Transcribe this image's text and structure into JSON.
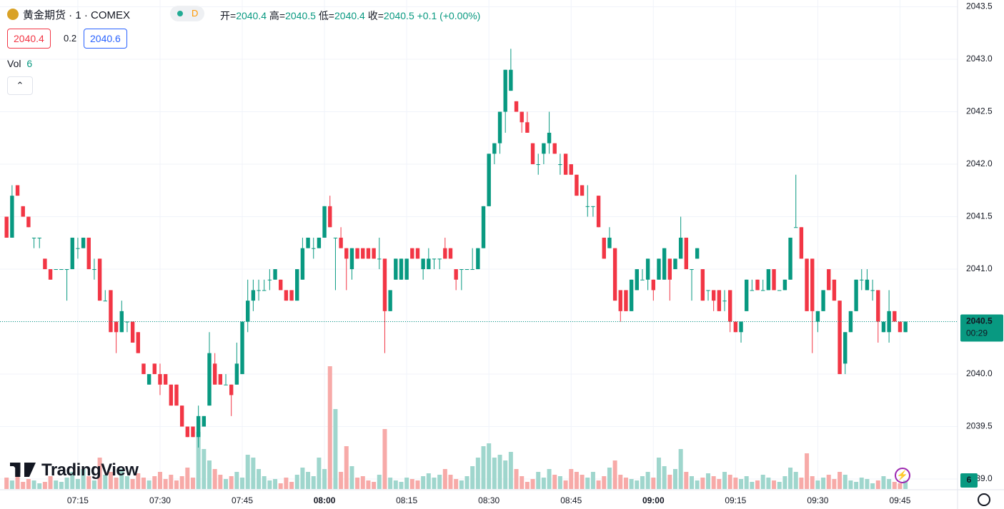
{
  "chart_data": {
    "type": "candlestick",
    "title": "黄金期货 · 1 · COMEX",
    "interval_badge": "D",
    "ohlc_labels": [
      "开=",
      "高=",
      "低=",
      "收="
    ],
    "change": "+0.1 (+0.00%)",
    "bid": 2040.4,
    "spread": 0.2,
    "ask": 2040.6,
    "volume_label": "Vol",
    "countdown": "00:29",
    "watermark": "TradingView",
    "up_color": "#089981",
    "down_color": "#f23645",
    "up_volume_color": "#9fd6cd",
    "down_volume_color": "#f7aaa8",
    "ylim": [
      2038.905,
      2043.565
    ],
    "yticks": [
      {
        "value": 2039.0,
        "label": "2039.0"
      },
      {
        "value": 2039.5,
        "label": "2039.5"
      },
      {
        "value": 2040.0,
        "label": "2040.0"
      },
      {
        "value": 2040.5,
        "label": "2040.5"
      },
      {
        "value": 2041.0,
        "label": "2041.0"
      },
      {
        "value": 2041.5,
        "label": "2041.5"
      },
      {
        "value": 2042.0,
        "label": "2042.0"
      },
      {
        "value": 2042.5,
        "label": "2042.5"
      },
      {
        "value": 2043.0,
        "label": "2043.0"
      },
      {
        "value": 2043.5,
        "label": "2043.5"
      }
    ],
    "xlim": [
      -1.2,
      173.5
    ],
    "xticks": [
      {
        "value": 13,
        "label": "07:15"
      },
      {
        "value": 28,
        "label": "07:30"
      },
      {
        "value": 43,
        "label": "07:45"
      },
      {
        "value": 58,
        "label": "08:00"
      },
      {
        "value": 73,
        "label": "08:15"
      },
      {
        "value": 88,
        "label": "08:30"
      },
      {
        "value": 103,
        "label": "08:45"
      },
      {
        "value": 118,
        "label": "09:00"
      },
      {
        "value": 133,
        "label": "09:15"
      },
      {
        "value": 148,
        "label": "09:30"
      },
      {
        "value": 163,
        "label": "09:45"
      }
    ],
    "candles": [
      [
        2041.5,
        2041.5,
        2041.3,
        2041.3
      ],
      [
        2041.3,
        2041.8,
        2041.3,
        2041.7
      ],
      [
        2041.8,
        2041.8,
        2041.7,
        2041.7
      ],
      [
        2041.6,
        2041.6,
        2041.5,
        2041.5
      ],
      [
        2041.5,
        2041.5,
        2041.4,
        2041.4
      ],
      [
        2041.3,
        2041.3,
        2041.2,
        2041.3
      ],
      [
        2041.3,
        2041.3,
        2041.2,
        2041.3
      ],
      [
        2041.1,
        2041.1,
        2041.0,
        2041.0
      ],
      [
        2041.0,
        2041.0,
        2040.9,
        2040.9
      ],
      [
        2041.0,
        2041.0,
        2041.0,
        2041.0
      ],
      [
        2041.0,
        2041.0,
        2041.0,
        2041.0
      ],
      [
        2041.0,
        2041.0,
        2040.7,
        2041.0
      ],
      [
        2041.0,
        2041.3,
        2041.0,
        2041.3
      ],
      [
        2041.2,
        2041.3,
        2041.1,
        2041.2
      ],
      [
        2041.2,
        2041.3,
        2041.2,
        2041.3
      ],
      [
        2041.3,
        2041.3,
        2041.0,
        2041.0
      ],
      [
        2041.0,
        2041.1,
        2040.9,
        2041.0
      ],
      [
        2041.1,
        2041.1,
        2040.7,
        2040.7
      ],
      [
        2040.7,
        2040.8,
        2040.7,
        2040.7
      ],
      [
        2040.8,
        2040.8,
        2040.4,
        2040.4
      ],
      [
        2040.5,
        2040.5,
        2040.2,
        2040.4
      ],
      [
        2040.4,
        2040.7,
        2040.4,
        2040.6
      ],
      [
        2040.5,
        2040.5,
        2040.4,
        2040.5
      ],
      [
        2040.5,
        2040.5,
        2040.3,
        2040.3
      ],
      [
        2040.4,
        2040.4,
        2040.2,
        2040.2
      ],
      [
        2040.1,
        2040.1,
        2040.0,
        2040.0
      ],
      [
        2039.9,
        2040.0,
        2039.9,
        2040.0
      ],
      [
        2040.1,
        2040.1,
        2040.0,
        2040.0
      ],
      [
        2040.0,
        2040.1,
        2039.8,
        2039.9
      ],
      [
        2040.0,
        2040.0,
        2039.9,
        2039.9
      ],
      [
        2039.9,
        2039.9,
        2039.7,
        2039.7
      ],
      [
        2039.9,
        2039.9,
        2039.7,
        2039.7
      ],
      [
        2039.7,
        2039.7,
        2039.5,
        2039.5
      ],
      [
        2039.5,
        2039.5,
        2039.4,
        2039.4
      ],
      [
        2039.5,
        2039.5,
        2039.4,
        2039.4
      ],
      [
        2039.4,
        2039.7,
        2039.3,
        2039.6
      ],
      [
        2039.5,
        2039.6,
        2039.5,
        2039.6
      ],
      [
        2039.7,
        2040.4,
        2039.7,
        2040.2
      ],
      [
        2040.1,
        2040.2,
        2039.9,
        2039.9
      ],
      [
        2040.0,
        2040.0,
        2039.9,
        2039.9
      ],
      [
        2039.9,
        2040.0,
        2039.9,
        2039.9
      ],
      [
        2039.9,
        2039.9,
        2039.6,
        2039.8
      ],
      [
        2039.9,
        2040.3,
        2039.9,
        2040.1
      ],
      [
        2040.0,
        2040.5,
        2040.0,
        2040.5
      ],
      [
        2040.5,
        2040.9,
        2040.4,
        2040.7
      ],
      [
        2040.7,
        2040.9,
        2040.6,
        2040.8
      ],
      [
        2040.8,
        2040.9,
        2040.7,
        2040.8
      ],
      [
        2040.8,
        2040.9,
        2040.8,
        2040.8
      ],
      [
        2040.9,
        2041.0,
        2040.8,
        2040.9
      ],
      [
        2040.9,
        2041.0,
        2040.9,
        2041.0
      ],
      [
        2040.9,
        2040.9,
        2040.8,
        2040.8
      ],
      [
        2040.8,
        2040.8,
        2040.7,
        2040.7
      ],
      [
        2040.8,
        2040.8,
        2040.7,
        2040.7
      ],
      [
        2040.7,
        2041.0,
        2040.7,
        2041.0
      ],
      [
        2040.9,
        2041.3,
        2040.9,
        2041.2
      ],
      [
        2041.2,
        2041.3,
        2041.2,
        2041.3
      ],
      [
        2041.2,
        2041.3,
        2041.1,
        2041.2
      ],
      [
        2041.2,
        2041.3,
        2041.2,
        2041.3
      ],
      [
        2041.3,
        2041.6,
        2041.3,
        2041.6
      ],
      [
        2041.6,
        2041.7,
        2041.4,
        2041.4
      ],
      [
        2041.3,
        2041.3,
        2040.8,
        2041.3
      ],
      [
        2041.3,
        2041.4,
        2041.2,
        2041.2
      ],
      [
        2041.2,
        2041.2,
        2040.8,
        2041.1
      ],
      [
        2041.0,
        2041.2,
        2040.9,
        2041.2
      ],
      [
        2041.2,
        2041.2,
        2041.1,
        2041.1
      ],
      [
        2041.2,
        2041.2,
        2041.1,
        2041.1
      ],
      [
        2041.2,
        2041.2,
        2041.1,
        2041.1
      ],
      [
        2041.2,
        2041.2,
        2041.1,
        2041.1
      ],
      [
        2041.1,
        2041.3,
        2041.0,
        2041.1
      ],
      [
        2041.1,
        2041.1,
        2040.2,
        2040.6
      ],
      [
        2040.6,
        2040.8,
        2040.6,
        2040.8
      ],
      [
        2040.9,
        2041.1,
        2040.9,
        2041.1
      ],
      [
        2040.9,
        2041.1,
        2040.9,
        2041.1
      ],
      [
        2040.9,
        2041.1,
        2040.9,
        2041.1
      ],
      [
        2041.2,
        2041.2,
        2041.1,
        2041.1
      ],
      [
        2041.2,
        2041.2,
        2041.1,
        2041.1
      ],
      [
        2041.0,
        2041.1,
        2040.9,
        2041.1
      ],
      [
        2041.0,
        2041.2,
        2041.0,
        2041.1
      ],
      [
        2041.1,
        2041.1,
        2041.0,
        2041.1
      ],
      [
        2041.1,
        2041.1,
        2041.0,
        2041.1
      ],
      [
        2041.2,
        2041.3,
        2041.1,
        2041.1
      ],
      [
        2041.2,
        2041.2,
        2041.1,
        2041.1
      ],
      [
        2041.0,
        2041.0,
        2040.8,
        2040.9
      ],
      [
        2041.0,
        2041.0,
        2040.8,
        2041.0
      ],
      [
        2041.0,
        2041.0,
        2041.0,
        2041.0
      ],
      [
        2041.0,
        2041.2,
        2041.0,
        2041.0
      ],
      [
        2041.0,
        2041.2,
        2041.0,
        2041.2
      ],
      [
        2041.2,
        2041.6,
        2041.2,
        2041.6
      ],
      [
        2041.6,
        2042.1,
        2041.6,
        2042.1
      ],
      [
        2042.1,
        2042.2,
        2042.0,
        2042.2
      ],
      [
        2042.2,
        2042.5,
        2042.1,
        2042.5
      ],
      [
        2042.5,
        2042.9,
        2042.3,
        2042.9
      ],
      [
        2042.7,
        2043.1,
        2042.7,
        2042.9
      ],
      [
        2042.6,
        2042.6,
        2042.5,
        2042.5
      ],
      [
        2042.5,
        2042.5,
        2042.3,
        2042.4
      ],
      [
        2042.4,
        2042.5,
        2042.3,
        2042.3
      ],
      [
        2042.2,
        2042.2,
        2042.0,
        2042.0
      ],
      [
        2042.0,
        2042.1,
        2041.9,
        2042.0
      ],
      [
        2042.1,
        2042.2,
        2042.0,
        2042.2
      ],
      [
        2042.2,
        2042.5,
        2042.1,
        2042.3
      ],
      [
        2042.2,
        2042.2,
        2042.1,
        2042.1
      ],
      [
        2042.0,
        2042.1,
        2041.9,
        2042.0
      ],
      [
        2042.1,
        2042.1,
        2041.9,
        2041.9
      ],
      [
        2042.0,
        2042.0,
        2041.9,
        2041.9
      ],
      [
        2041.9,
        2041.9,
        2041.7,
        2041.7
      ],
      [
        2041.8,
        2041.8,
        2041.7,
        2041.7
      ],
      [
        2041.6,
        2041.8,
        2041.5,
        2041.6
      ],
      [
        2041.6,
        2041.6,
        2041.5,
        2041.6
      ],
      [
        2041.7,
        2041.7,
        2041.4,
        2041.4
      ],
      [
        2041.3,
        2041.3,
        2041.1,
        2041.1
      ],
      [
        2041.2,
        2041.4,
        2041.2,
        2041.3
      ],
      [
        2041.2,
        2041.2,
        2040.7,
        2040.7
      ],
      [
        2040.8,
        2040.8,
        2040.5,
        2040.6
      ],
      [
        2040.8,
        2040.8,
        2040.6,
        2040.6
      ],
      [
        2040.6,
        2040.9,
        2040.6,
        2040.9
      ],
      [
        2040.8,
        2041.0,
        2040.8,
        2041.0
      ],
      [
        2040.9,
        2041.0,
        2040.9,
        2040.9
      ],
      [
        2040.9,
        2041.1,
        2040.8,
        2041.1
      ],
      [
        2040.9,
        2040.9,
        2040.7,
        2040.8
      ],
      [
        2040.9,
        2041.1,
        2040.9,
        2041.1
      ],
      [
        2040.9,
        2041.2,
        2040.9,
        2041.2
      ],
      [
        2041.1,
        2041.1,
        2040.7,
        2040.9
      ],
      [
        2041.0,
        2041.1,
        2041.0,
        2041.1
      ],
      [
        2041.1,
        2041.5,
        2041.1,
        2041.3
      ],
      [
        2041.3,
        2041.3,
        2041.0,
        2041.0
      ],
      [
        2041.0,
        2041.0,
        2040.7,
        2041.0
      ],
      [
        2041.1,
        2041.2,
        2041.1,
        2041.2
      ],
      [
        2041.0,
        2041.0,
        2040.7,
        2040.7
      ],
      [
        2040.8,
        2040.8,
        2040.7,
        2040.8
      ],
      [
        2040.8,
        2040.8,
        2040.6,
        2040.7
      ],
      [
        2040.8,
        2040.8,
        2040.6,
        2040.6
      ],
      [
        2040.7,
        2040.8,
        2040.6,
        2040.7
      ],
      [
        2040.8,
        2040.8,
        2040.4,
        2040.5
      ],
      [
        2040.5,
        2040.5,
        2040.4,
        2040.4
      ],
      [
        2040.4,
        2040.5,
        2040.3,
        2040.5
      ],
      [
        2040.6,
        2040.9,
        2040.6,
        2040.9
      ],
      [
        2040.8,
        2040.9,
        2040.8,
        2040.8
      ],
      [
        2040.9,
        2040.9,
        2040.8,
        2040.8
      ],
      [
        2040.8,
        2040.9,
        2040.8,
        2040.8
      ],
      [
        2040.8,
        2041.0,
        2040.8,
        2041.0
      ],
      [
        2041.0,
        2041.0,
        2040.8,
        2040.8
      ],
      [
        2040.8,
        2040.8,
        2040.8,
        2040.8
      ],
      [
        2040.8,
        2040.9,
        2040.8,
        2040.9
      ],
      [
        2040.9,
        2041.3,
        2040.9,
        2041.3
      ],
      [
        2041.4,
        2041.9,
        2041.4,
        2041.4
      ],
      [
        2041.4,
        2041.4,
        2041.1,
        2041.1
      ],
      [
        2041.1,
        2041.1,
        2040.6,
        2040.6
      ],
      [
        2041.1,
        2041.1,
        2040.2,
        2040.6
      ],
      [
        2040.5,
        2040.6,
        2040.4,
        2040.6
      ],
      [
        2040.6,
        2040.8,
        2040.6,
        2040.8
      ],
      [
        2041.0,
        2041.0,
        2040.8,
        2040.8
      ],
      [
        2040.9,
        2040.9,
        2040.7,
        2040.7
      ],
      [
        2040.7,
        2040.7,
        2040.0,
        2040.0
      ],
      [
        2040.1,
        2040.4,
        2040.0,
        2040.4
      ],
      [
        2040.4,
        2040.6,
        2040.4,
        2040.6
      ],
      [
        2040.6,
        2040.9,
        2040.6,
        2040.9
      ],
      [
        2040.9,
        2041.0,
        2040.8,
        2040.9
      ],
      [
        2040.8,
        2041.0,
        2040.8,
        2040.9
      ],
      [
        2040.8,
        2040.9,
        2040.7,
        2040.8
      ],
      [
        2040.8,
        2040.8,
        2040.3,
        2040.5
      ],
      [
        2040.4,
        2040.5,
        2040.4,
        2040.5
      ],
      [
        2040.4,
        2040.8,
        2040.3,
        2040.6
      ],
      [
        2040.6,
        2040.6,
        2040.5,
        2040.5
      ],
      [
        2040.5,
        2040.5,
        2040.4,
        2040.4
      ],
      [
        2040.4,
        2040.5,
        2040.4,
        2040.5
      ]
    ],
    "volumes": [
      8,
      6,
      10,
      5,
      7,
      6,
      4,
      5,
      9,
      6,
      5,
      8,
      12,
      7,
      14,
      9,
      6,
      22,
      10,
      12,
      8,
      14,
      9,
      7,
      11,
      8,
      6,
      9,
      12,
      7,
      10,
      6,
      9,
      15,
      8,
      40,
      28,
      20,
      14,
      10,
      7,
      9,
      12,
      8,
      24,
      22,
      14,
      9,
      6,
      7,
      4,
      8,
      5,
      10,
      15,
      12,
      9,
      22,
      14,
      86,
      56,
      12,
      30,
      16,
      8,
      9,
      6,
      5,
      10,
      42,
      8,
      6,
      5,
      8,
      7,
      6,
      9,
      11,
      8,
      10,
      14,
      10,
      7,
      6,
      9,
      16,
      22,
      30,
      32,
      22,
      24,
      20,
      26,
      14,
      9,
      5,
      7,
      12,
      8,
      14,
      10,
      9,
      6,
      14,
      12,
      10,
      8,
      12,
      6,
      9,
      15,
      20,
      10,
      8,
      7,
      6,
      9,
      12,
      8,
      22,
      16,
      10,
      14,
      28,
      12,
      9,
      6,
      8,
      11,
      9,
      7,
      12,
      10,
      8,
      7,
      9,
      5,
      6,
      10,
      8,
      6,
      5,
      9,
      15,
      12,
      8,
      25,
      9,
      6,
      8,
      10,
      7,
      12,
      10,
      6,
      5,
      8,
      7,
      4,
      6,
      9,
      7,
      5,
      4,
      6
    ]
  }
}
